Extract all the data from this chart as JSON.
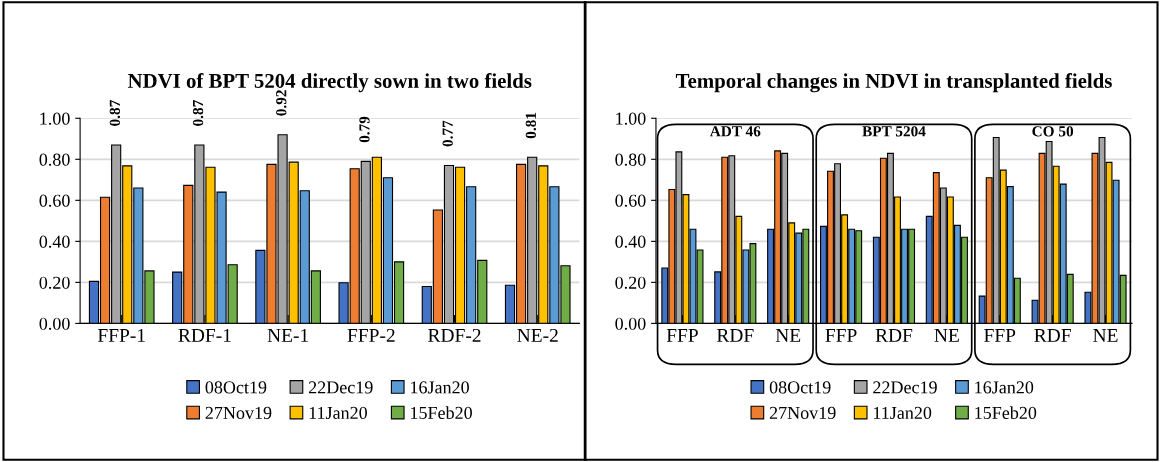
{
  "chart_data": [
    {
      "type": "bar",
      "title": "NDVI of BPT 5204 directly sown in two fields",
      "categories": [
        "FFP-1",
        "RDF-1",
        "NE-1",
        "FFP-2",
        "RDF-2",
        "NE-2"
      ],
      "ylim": [
        0,
        1
      ],
      "yticks": [
        {
          "value": 0,
          "label": "0.00"
        },
        {
          "value": 0.2,
          "label": "0.20"
        },
        {
          "value": 0.4,
          "label": "0.40"
        },
        {
          "value": 0.6,
          "label": "0.60"
        },
        {
          "value": 0.8,
          "label": "0.80"
        },
        {
          "value": 1,
          "label": "1.00"
        }
      ],
      "grid": "y",
      "legend": "bottom",
      "series": [
        {
          "name": "08Oct19",
          "color": "#4472c4",
          "values": [
            0.205,
            0.25,
            0.356,
            0.198,
            0.18,
            0.186
          ]
        },
        {
          "name": "27Nov19",
          "color": "#ed7d31",
          "values": [
            0.615,
            0.673,
            0.775,
            0.754,
            0.553,
            0.775
          ]
        },
        {
          "name": "22Dec19",
          "color": "#a5a5a5",
          "values": [
            0.87,
            0.87,
            0.92,
            0.79,
            0.77,
            0.81
          ],
          "value_labels": [
            "0.87",
            "0.87",
            "0.92",
            "0.79",
            "0.77",
            "0.81"
          ]
        },
        {
          "name": "11Jan20",
          "color": "#ffc000",
          "values": [
            0.768,
            0.761,
            0.786,
            0.81,
            0.761,
            0.768
          ]
        },
        {
          "name": "16Jan20",
          "color": "#5b9bd5",
          "values": [
            0.66,
            0.64,
            0.647,
            0.71,
            0.666,
            0.666
          ]
        },
        {
          "name": "15Feb20",
          "color": "#70ad47",
          "values": [
            0.256,
            0.286,
            0.256,
            0.3,
            0.307,
            0.281
          ]
        }
      ]
    },
    {
      "type": "bar",
      "title": "Temporal changes in NDVI in transplanted fields",
      "categories": [
        "FFP",
        "RDF",
        "NE",
        "FFP",
        "RDF",
        "NE",
        "FFP",
        "RDF",
        "NE"
      ],
      "annotations": [
        "ADT 46",
        "BPT 5204",
        "CO 50"
      ],
      "ylim": [
        0,
        1
      ],
      "yticks": [
        {
          "value": 0,
          "label": "0.00"
        },
        {
          "value": 0.2,
          "label": "0.20"
        },
        {
          "value": 0.4,
          "label": "0.40"
        },
        {
          "value": 0.6,
          "label": "0.60"
        },
        {
          "value": 0.8,
          "label": "0.80"
        },
        {
          "value": 1,
          "label": "1.00"
        }
      ],
      "grid": "y",
      "legend": "bottom",
      "series": [
        {
          "name": "08Oct19",
          "color": "#4472c4",
          "values": [
            0.27,
            0.251,
            0.459,
            0.473,
            0.42,
            0.522,
            0.133,
            0.113,
            0.152
          ]
        },
        {
          "name": "27Nov19",
          "color": "#ed7d31",
          "values": [
            0.653,
            0.81,
            0.841,
            0.742,
            0.805,
            0.735,
            0.71,
            0.829,
            0.829
          ]
        },
        {
          "name": "22Dec19",
          "color": "#a5a5a5",
          "values": [
            0.836,
            0.817,
            0.829,
            0.778,
            0.829,
            0.66,
            0.906,
            0.887,
            0.906
          ]
        },
        {
          "name": "11Jan20",
          "color": "#ffc000",
          "values": [
            0.628,
            0.522,
            0.49,
            0.529,
            0.616,
            0.616,
            0.747,
            0.766,
            0.785
          ]
        },
        {
          "name": "16Jan20",
          "color": "#5b9bd5",
          "values": [
            0.459,
            0.358,
            0.44,
            0.459,
            0.459,
            0.478,
            0.667,
            0.679,
            0.698
          ]
        },
        {
          "name": "15Feb20",
          "color": "#70ad47",
          "values": [
            0.358,
            0.389,
            0.459,
            0.452,
            0.459,
            0.42,
            0.22,
            0.239,
            0.234
          ]
        }
      ]
    }
  ]
}
